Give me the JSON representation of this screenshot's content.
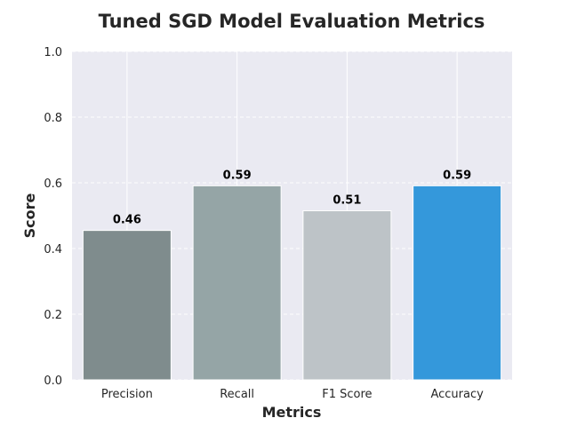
{
  "chart_data": {
    "type": "bar",
    "title": "Tuned SGD Model Evaluation Metrics",
    "xlabel": "Metrics",
    "ylabel": "Score",
    "categories": [
      "Precision",
      "Recall",
      "F1 Score",
      "Accuracy"
    ],
    "values": [
      0.455,
      0.591,
      0.515,
      0.591
    ],
    "value_labels": [
      "0.46",
      "0.59",
      "0.51",
      "0.59"
    ],
    "bar_colors": [
      "#7f8c8d",
      "#95a5a6",
      "#bdc3c7",
      "#3498db"
    ],
    "ylim": [
      0,
      1.0
    ],
    "yticks": [
      "0.0",
      "0.2",
      "0.4",
      "0.6",
      "0.8",
      "1.0"
    ],
    "grid": true,
    "grid_style": "dashed",
    "background_color": "#eaeaf2"
  }
}
